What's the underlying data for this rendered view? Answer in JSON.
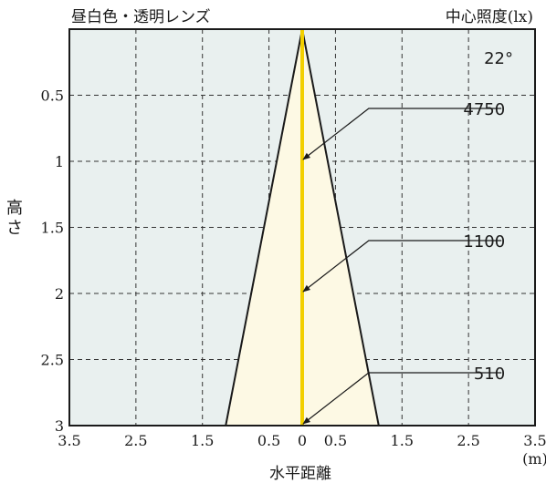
{
  "header": {
    "left_title": "昼白色・透明レンズ",
    "right_title": "中心照度(lx)"
  },
  "chart_data": {
    "type": "area",
    "title": "昼白色・透明レンズ",
    "beam_angle_label": "22°",
    "xlabel": "水平距離",
    "xunit": "(m)",
    "ylabel": "高さ",
    "xlim": [
      -3.5,
      3.5
    ],
    "ylim": [
      0,
      3
    ],
    "y_inverted": true,
    "grid": true,
    "x_ticks": [
      {
        "value": -3.5,
        "label": "3.5"
      },
      {
        "value": -2.5,
        "label": "2.5"
      },
      {
        "value": -1.5,
        "label": "1.5"
      },
      {
        "value": -0.5,
        "label": "0.5"
      },
      {
        "value": 0,
        "label": "0"
      },
      {
        "value": 0.5,
        "label": "0.5"
      },
      {
        "value": 1.5,
        "label": "1.5"
      },
      {
        "value": 2.5,
        "label": "2.5"
      },
      {
        "value": 3.5,
        "label": "3.5"
      }
    ],
    "x_grid_values": [
      -2.5,
      -1.5,
      -0.5,
      0.5,
      1.5,
      2.5
    ],
    "y_ticks": [
      {
        "value": 0.5,
        "label": "0.5"
      },
      {
        "value": 1,
        "label": "1"
      },
      {
        "value": 1.5,
        "label": "1.5"
      },
      {
        "value": 2,
        "label": "2"
      },
      {
        "value": 2.5,
        "label": "2.5"
      },
      {
        "value": 3,
        "label": "3"
      }
    ],
    "beam_cone": {
      "apex": [
        0,
        0
      ],
      "base_left": [
        -1.15,
        3
      ],
      "base_right": [
        1.15,
        3
      ]
    },
    "center_illuminance": [
      {
        "height": 1,
        "lux": "4750"
      },
      {
        "height": 2,
        "lux": "1100"
      },
      {
        "height": 3,
        "lux": "510"
      }
    ],
    "colors": {
      "plot_background": "#e9f0ef",
      "beam_fill": "#fdf9e4",
      "beam_outline": "#1a1a1a",
      "center_line": "#f2cf00"
    }
  }
}
